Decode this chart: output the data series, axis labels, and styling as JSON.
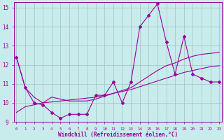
{
  "background_color": "#c8ecec",
  "grid_color": "#a0c0c0",
  "line_color": "#990099",
  "xlim": [
    -0.3,
    23.3
  ],
  "ylim": [
    9,
    15.3
  ],
  "ytick_vals": [
    9,
    10,
    11,
    12,
    13,
    14,
    15
  ],
  "xtick_vals": [
    0,
    1,
    2,
    3,
    4,
    5,
    6,
    7,
    8,
    9,
    10,
    11,
    12,
    13,
    14,
    15,
    16,
    17,
    18,
    19,
    20,
    21,
    22,
    23
  ],
  "xlabel": "Windchill (Refroidissement éolien,°C)",
  "line1_x": [
    0,
    1,
    2,
    3,
    4,
    5,
    6,
    7,
    8,
    9,
    10,
    11,
    12,
    13,
    14,
    15,
    16,
    17,
    18,
    19,
    20,
    21,
    22,
    23
  ],
  "line1_y": [
    12.4,
    10.8,
    10.0,
    9.9,
    9.5,
    9.2,
    9.4,
    9.4,
    9.4,
    10.4,
    10.4,
    11.1,
    10.0,
    11.1,
    14.0,
    14.6,
    15.2,
    13.2,
    11.5,
    13.5,
    11.5,
    11.3,
    11.1,
    11.1
  ],
  "line2_x": [
    0,
    1,
    2,
    3,
    4,
    5,
    6,
    7,
    8,
    9,
    10,
    11,
    12,
    13,
    14,
    15,
    16,
    17,
    18,
    19,
    20,
    21,
    22,
    23
  ],
  "line2_y": [
    9.5,
    9.8,
    9.9,
    10.0,
    10.05,
    10.1,
    10.15,
    10.2,
    10.25,
    10.3,
    10.4,
    10.5,
    10.6,
    10.7,
    10.85,
    11.0,
    11.15,
    11.3,
    11.45,
    11.6,
    11.7,
    11.8,
    11.9,
    11.95
  ],
  "line3_x": [
    0,
    1,
    2,
    3,
    4,
    5,
    6,
    7,
    8,
    9,
    10,
    11,
    12,
    13,
    14,
    15,
    16,
    17,
    18,
    19,
    20,
    21,
    22,
    23
  ],
  "line3_y": [
    12.4,
    10.8,
    10.3,
    10.0,
    10.3,
    10.2,
    10.1,
    10.1,
    10.1,
    10.2,
    10.35,
    10.5,
    10.65,
    10.8,
    11.1,
    11.4,
    11.7,
    11.95,
    12.1,
    12.3,
    12.45,
    12.55,
    12.6,
    12.65
  ]
}
